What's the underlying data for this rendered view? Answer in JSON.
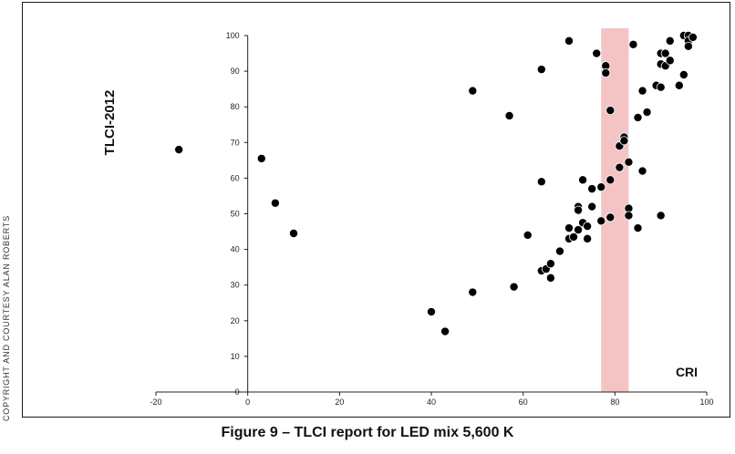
{
  "chart_data": {
    "type": "scatter",
    "title": "",
    "xlabel": "CRI",
    "ylabel": "TLCI-2012",
    "xlim": [
      -20,
      100
    ],
    "ylim": [
      0,
      100
    ],
    "x_ticks": [
      -20,
      0,
      20,
      40,
      60,
      80,
      100
    ],
    "y_ticks": [
      0,
      10,
      20,
      30,
      40,
      50,
      60,
      70,
      80,
      90,
      100
    ],
    "grid": false,
    "legend": "none",
    "highlight_band": {
      "x_from": 77,
      "x_to": 83,
      "color": "#f4c4c4"
    },
    "point_color": "#000000",
    "series": [
      {
        "name": "LED mix 5,600 K",
        "points": [
          [
            -15,
            68
          ],
          [
            3,
            65.5
          ],
          [
            6,
            53
          ],
          [
            10,
            44.5
          ],
          [
            40,
            22.5
          ],
          [
            43,
            17
          ],
          [
            49,
            28
          ],
          [
            49,
            84.5
          ],
          [
            57,
            77.5
          ],
          [
            58,
            29.5
          ],
          [
            61,
            44
          ],
          [
            64,
            90.5
          ],
          [
            64,
            59
          ],
          [
            64,
            34
          ],
          [
            65,
            34.5
          ],
          [
            66,
            36
          ],
          [
            66,
            32
          ],
          [
            68,
            39.5
          ],
          [
            70,
            98.5
          ],
          [
            70,
            46
          ],
          [
            70,
            43
          ],
          [
            71,
            43.5
          ],
          [
            72,
            52
          ],
          [
            72,
            51
          ],
          [
            72,
            45.5
          ],
          [
            73,
            59.5
          ],
          [
            73,
            47.5
          ],
          [
            74,
            46.5
          ],
          [
            74,
            43
          ],
          [
            75,
            57
          ],
          [
            75,
            52
          ],
          [
            76,
            95
          ],
          [
            77,
            57.5
          ],
          [
            77,
            48
          ],
          [
            78,
            91.5
          ],
          [
            78,
            89.5
          ],
          [
            79,
            79
          ],
          [
            79,
            59.5
          ],
          [
            79,
            49
          ],
          [
            81,
            69
          ],
          [
            81,
            63
          ],
          [
            82,
            71.5
          ],
          [
            82,
            70.5
          ],
          [
            83,
            64.5
          ],
          [
            83,
            51.5
          ],
          [
            83,
            49.5
          ],
          [
            84,
            97.5
          ],
          [
            85,
            77
          ],
          [
            85,
            46
          ],
          [
            86,
            84.5
          ],
          [
            86,
            62
          ],
          [
            87,
            78.5
          ],
          [
            89,
            86
          ],
          [
            90,
            95
          ],
          [
            90,
            92
          ],
          [
            90,
            85.5
          ],
          [
            90,
            49.5
          ],
          [
            91,
            95
          ],
          [
            91,
            91.5
          ],
          [
            92,
            98.5
          ],
          [
            92,
            93
          ],
          [
            94,
            86
          ],
          [
            95,
            100
          ],
          [
            95,
            89
          ],
          [
            96,
            100
          ],
          [
            96,
            98.5
          ],
          [
            96,
            97
          ],
          [
            97,
            99.5
          ]
        ]
      }
    ]
  },
  "labels": {
    "side_credit": "COPYRIGHT AND COURTESY ALAN ROBERTS",
    "caption": "Figure 9 – TLCI report for LED mix 5,600 K"
  }
}
